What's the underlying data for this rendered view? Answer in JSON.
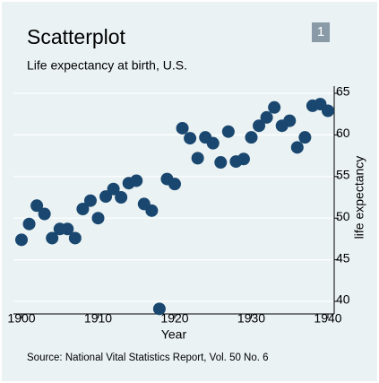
{
  "chart_data": {
    "type": "scatter",
    "title": "Scatterplot",
    "subtitle": "Life expectancy at birth, U.S.",
    "note": "Source:  National Vital Statistics Report, Vol. 50 No. 6",
    "badge": "1",
    "x_label": "Year",
    "y_label": "life expectancy",
    "x": [
      1900,
      1901,
      1902,
      1903,
      1904,
      1905,
      1906,
      1907,
      1908,
      1909,
      1910,
      1911,
      1912,
      1913,
      1914,
      1915,
      1916,
      1917,
      1918,
      1919,
      1920,
      1921,
      1922,
      1923,
      1924,
      1925,
      1926,
      1927,
      1928,
      1929,
      1930,
      1931,
      1932,
      1933,
      1934,
      1935,
      1936,
      1937,
      1938,
      1939,
      1940
    ],
    "values": [
      47.4,
      49.3,
      51.5,
      50.5,
      47.6,
      48.7,
      48.7,
      47.6,
      51.1,
      52.1,
      50.0,
      52.6,
      53.5,
      52.5,
      54.2,
      54.5,
      51.7,
      50.9,
      39.1,
      54.7,
      54.1,
      60.8,
      59.6,
      57.2,
      59.7,
      59.0,
      56.7,
      60.4,
      56.8,
      57.1,
      59.7,
      61.1,
      62.1,
      63.3,
      61.1,
      61.7,
      58.5,
      59.7,
      63.5,
      63.7,
      62.9
    ],
    "color": "#1a476f",
    "xlim": [
      1900,
      1940
    ],
    "xticks": [
      1900,
      1910,
      1920,
      1930,
      1940
    ],
    "ylim": [
      40,
      65
    ],
    "yticks": [
      40,
      45,
      50,
      55,
      60,
      65
    ],
    "grid": true
  }
}
